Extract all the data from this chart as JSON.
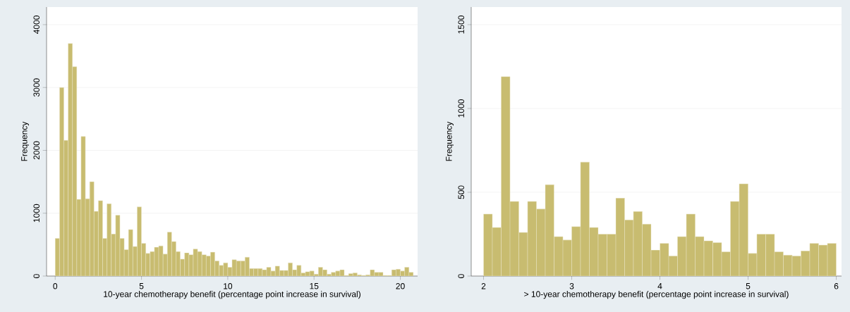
{
  "chart_data": [
    {
      "type": "histogram",
      "xlabel": "10-year chemotherapy benefit (percentage point increase in survival)",
      "ylabel": "Frequency",
      "color": "#c8bc70",
      "grid": "y",
      "bins": [
        0,
        0.25,
        0.5,
        0.75,
        1,
        1.25,
        1.5,
        1.75,
        2,
        2.25,
        2.5,
        2.75,
        3,
        3.25,
        3.5,
        3.75,
        4,
        4.25,
        4.5,
        4.75,
        5,
        5.25,
        5.5,
        5.75,
        6,
        6.25,
        6.5,
        6.75,
        7,
        7.25,
        7.5,
        7.75,
        8,
        8.25,
        8.5,
        8.75,
        9,
        9.25,
        9.5,
        9.75,
        10,
        10.25,
        10.5,
        10.75,
        11,
        11.25,
        11.5,
        11.75,
        12,
        12.25,
        12.5,
        12.75,
        13,
        13.25,
        13.5,
        13.75,
        14,
        14.25,
        14.5,
        14.75,
        15,
        15.25,
        15.5,
        15.75,
        16,
        16.25,
        16.5,
        16.75,
        17,
        17.25,
        17.5,
        17.75,
        18,
        18.25,
        18.5,
        18.75,
        19,
        19.25,
        19.5,
        19.75,
        20,
        20.25,
        20.5,
        20.75
      ],
      "values": [
        600,
        3000,
        2160,
        3700,
        3330,
        1220,
        2220,
        1230,
        1500,
        1030,
        1200,
        600,
        1150,
        670,
        970,
        600,
        420,
        740,
        470,
        1100,
        520,
        360,
        390,
        460,
        480,
        350,
        700,
        550,
        390,
        270,
        370,
        340,
        430,
        390,
        340,
        320,
        380,
        240,
        170,
        210,
        140,
        260,
        240,
        240,
        300,
        120,
        120,
        120,
        100,
        140,
        80,
        160,
        90,
        90,
        210,
        100,
        170,
        50,
        70,
        80,
        30,
        140,
        100,
        30,
        60,
        80,
        100,
        10,
        40,
        50,
        20,
        10,
        20,
        100,
        60,
        60,
        10,
        10,
        100,
        110,
        80,
        140,
        60
      ],
      "xlim": [
        -0.5,
        21
      ],
      "ylim": [
        0,
        4280
      ],
      "xticks": [
        0,
        5,
        10,
        15,
        20
      ],
      "yticks": [
        0,
        1000,
        2000,
        3000,
        4000
      ]
    },
    {
      "type": "histogram",
      "xlabel": "> 10-year chemotherapy benefit (percentage point increase in survival)",
      "ylabel": "Frequency",
      "color": "#c8bc70",
      "grid": "y",
      "bins": [
        2,
        2.1,
        2.2,
        2.3,
        2.4,
        2.5,
        2.6,
        2.7,
        2.8,
        2.9,
        3,
        3.1,
        3.2,
        3.3,
        3.4,
        3.5,
        3.6,
        3.7,
        3.8,
        3.9,
        4,
        4.1,
        4.2,
        4.3,
        4.4,
        4.5,
        4.6,
        4.7,
        4.8,
        4.9,
        5,
        5.1,
        5.2,
        5.3,
        5.4,
        5.5,
        5.6,
        5.7,
        5.8,
        5.9,
        6
      ],
      "values": [
        370,
        290,
        1190,
        445,
        260,
        445,
        400,
        545,
        235,
        215,
        295,
        680,
        290,
        250,
        250,
        465,
        335,
        385,
        310,
        155,
        195,
        120,
        235,
        370,
        235,
        210,
        200,
        145,
        445,
        550,
        135,
        250,
        250,
        145,
        125,
        120,
        150,
        195,
        185,
        195
      ],
      "xlim": [
        1.86,
        6.06
      ],
      "ylim": [
        0,
        1605
      ],
      "xticks": [
        2,
        3,
        4,
        5,
        6
      ],
      "yticks": [
        0,
        500,
        1000,
        1500
      ]
    }
  ]
}
